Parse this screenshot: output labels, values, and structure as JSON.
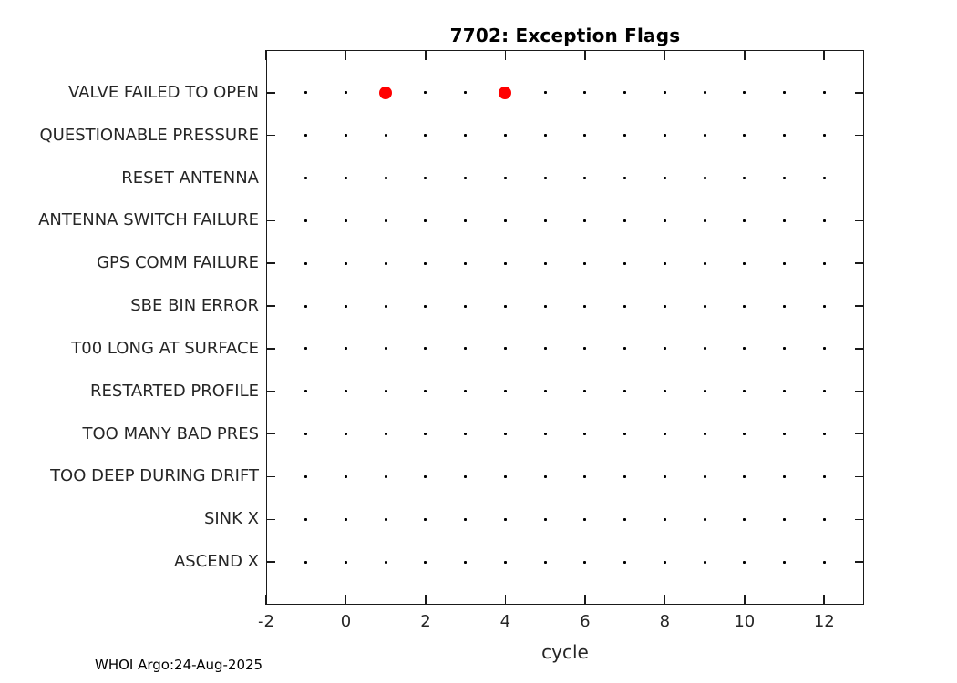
{
  "chart_data": {
    "type": "scatter",
    "title": "7702: Exception Flags",
    "xlabel": "cycle",
    "xlim": [
      -2,
      13
    ],
    "ylim": [
      0,
      13
    ],
    "x_ticks": [
      -2,
      0,
      2,
      4,
      6,
      8,
      10,
      12
    ],
    "grid": "dotted-markers-at-every-cycle",
    "categories_top_to_bottom": [
      "VALVE FAILED TO OPEN",
      "QUESTIONABLE PRESSURE",
      "RESET ANTENNA",
      "ANTENNA SWITCH FAILURE",
      "GPS COMM FAILURE",
      "SBE BIN ERROR",
      "T00 LONG AT SURFACE",
      "RESTARTED PROFILE",
      "TOO MANY BAD PRES",
      "TOO DEEP DURING DRIFT",
      "SINK X",
      "ASCEND X"
    ],
    "dot_cycles": [
      -1,
      0,
      1,
      2,
      3,
      4,
      5,
      6,
      7,
      8,
      9,
      10,
      11,
      12
    ],
    "events": [
      {
        "category": "VALVE FAILED TO OPEN",
        "cycles": [
          1,
          4
        ]
      }
    ],
    "colors": {
      "event_marker": "#ff0000",
      "grid_dot": "#000000",
      "axis_line": "#1a1a1a",
      "text": "#262626"
    }
  },
  "footer": {
    "text": "WHOI Argo:24-Aug-2025"
  }
}
